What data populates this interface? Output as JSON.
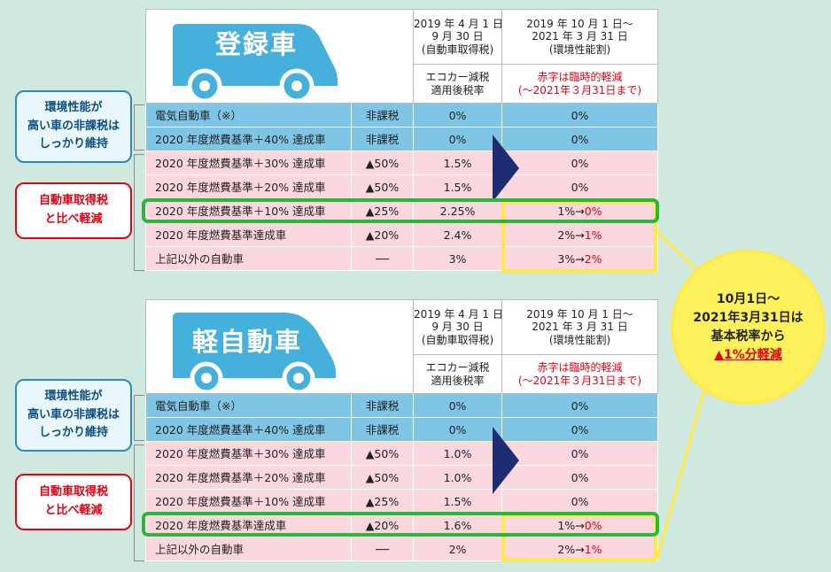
{
  "panels": [
    {
      "title": "登録車",
      "header": {
        "col_a_line1": "2019 年 4 月 1 日～",
        "col_a_line2": "9 月 30 日",
        "col_a_line3": "(自動車取得税)",
        "col_b_line1": "2019 年 10 月 1 日～",
        "col_b_line2": "2021 年 3 月 31 日",
        "col_b_line3": "(環境性能割)",
        "sub_a_line1": "エコカー減税",
        "sub_a_line2": "適用後税率",
        "sub_b_line1": "赤字は臨時的軽減",
        "sub_b_line2": "(～2021年３月31日まで)"
      },
      "rows": [
        {
          "label": "電気自動車（※）",
          "reduction": "非課税",
          "rate": "0%",
          "new_before": "0%",
          "new_after": ""
        },
        {
          "label": "2020 年度燃費基準＋40% 達成車",
          "reduction": "非課税",
          "rate": "0%",
          "new_before": "0%",
          "new_after": ""
        },
        {
          "label": "2020 年度燃費基準＋30% 達成車",
          "reduction": "▲50%",
          "rate": "1.5%",
          "new_before": "0%",
          "new_after": ""
        },
        {
          "label": "2020 年度燃費基準＋20% 達成車",
          "reduction": "▲50%",
          "rate": "1.5%",
          "new_before": "0%",
          "new_after": ""
        },
        {
          "label": "2020 年度燃費基準＋10% 達成車",
          "reduction": "▲25%",
          "rate": "2.25%",
          "new_before": "1%→",
          "new_after": "0%"
        },
        {
          "label": "2020 年度燃費基準達成車",
          "reduction": "▲20%",
          "rate": "2.4%",
          "new_before": "2%→",
          "new_after": "1%"
        },
        {
          "label": "上記以外の自動車",
          "reduction": "──",
          "rate": "3%",
          "new_before": "3%→",
          "new_after": "2%"
        }
      ]
    },
    {
      "title": "軽自動車",
      "header": {
        "col_a_line1": "2019 年 4 月 1 日～",
        "col_a_line2": "9 月 30 日",
        "col_a_line3": "(自動車取得税)",
        "col_b_line1": "2019 年 10 月 1 日～",
        "col_b_line2": "2021 年 3 月 31 日",
        "col_b_line3": "(環境性能割)",
        "sub_a_line1": "エコカー減税",
        "sub_a_line2": "適用後税率",
        "sub_b_line1": "赤字は臨時的軽減",
        "sub_b_line2": "(～2021年３月31日まで)"
      },
      "rows": [
        {
          "label": "電気自動車（※）",
          "reduction": "非課税",
          "rate": "0%",
          "new_before": "0%",
          "new_after": ""
        },
        {
          "label": "2020 年度燃費基準＋40% 達成車",
          "reduction": "非課税",
          "rate": "0%",
          "new_before": "0%",
          "new_after": ""
        },
        {
          "label": "2020 年度燃費基準＋30% 達成車",
          "reduction": "▲50%",
          "rate": "1.0%",
          "new_before": "0%",
          "new_after": ""
        },
        {
          "label": "2020 年度燃費基準＋20% 達成車",
          "reduction": "▲50%",
          "rate": "1.0%",
          "new_before": "0%",
          "new_after": ""
        },
        {
          "label": "2020 年度燃費基準＋10% 達成車",
          "reduction": "▲25%",
          "rate": "1.5%",
          "new_before": "0%",
          "new_after": ""
        },
        {
          "label": "2020 年度燃費基準達成車",
          "reduction": "▲20%",
          "rate": "1.6%",
          "new_before": "1%→",
          "new_after": "0%"
        },
        {
          "label": "上記以外の自動車",
          "reduction": "──",
          "rate": "2%",
          "new_before": "2%→",
          "new_after": "1%"
        }
      ]
    }
  ],
  "side_labels": {
    "blue": [
      "環境性能が",
      "高い車の非課税は",
      "しっかり維持"
    ],
    "red": [
      "自動車取得税",
      "と比べ軽減"
    ]
  },
  "callout": {
    "line1": "10月1日～",
    "line2": "2021年3月31日は",
    "line3": "基本税率から",
    "line4": "▲1%分軽減"
  },
  "colors": {
    "background": "#cfe9df",
    "blue_row": "#7fc6e6",
    "pink_row": "#fad7dd",
    "car_icon": "#45b0dc",
    "highlight_green": "#27b83a",
    "highlight_yellow": "#ffe94a",
    "arrow": "#1e2c73",
    "accent_red": "#e60012"
  }
}
